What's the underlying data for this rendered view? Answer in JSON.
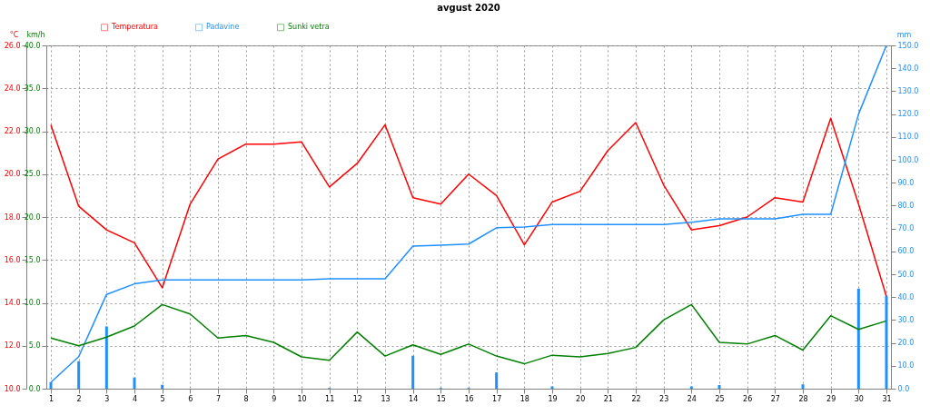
{
  "chart_data": {
    "type": "line",
    "title": "avgust 2020",
    "ylabel": "°C",
    "y3label": "km/h",
    "y2label": "mm",
    "x": [
      1,
      2,
      3,
      4,
      5,
      6,
      7,
      8,
      9,
      10,
      11,
      12,
      13,
      14,
      15,
      16,
      17,
      18,
      19,
      20,
      21,
      22,
      23,
      24,
      25,
      26,
      27,
      28,
      29,
      30,
      31
    ],
    "xlim": [
      1,
      31
    ],
    "xticks": [
      1,
      2,
      3,
      4,
      5,
      6,
      7,
      8,
      9,
      10,
      11,
      12,
      13,
      14,
      15,
      16,
      17,
      18,
      19,
      20,
      21,
      22,
      23,
      24,
      25,
      26,
      27,
      28,
      29,
      30,
      31
    ],
    "ylim": [
      10,
      26
    ],
    "yticks": [
      {
        "value": 10,
        "label": "10.0"
      },
      {
        "value": 12,
        "label": "12.0"
      },
      {
        "value": 14,
        "label": "14.0"
      },
      {
        "value": 16,
        "label": "16.0"
      },
      {
        "value": 18,
        "label": "18.0"
      },
      {
        "value": 20,
        "label": "20.0"
      },
      {
        "value": 22,
        "label": "22.0"
      },
      {
        "value": 24,
        "label": "24.0"
      },
      {
        "value": 26,
        "label": "26.0"
      }
    ],
    "y3lim": [
      0,
      40
    ],
    "y3ticks": [
      {
        "value": 0,
        "label": "0.0"
      },
      {
        "value": 5,
        "label": "5.0"
      },
      {
        "value": 10,
        "label": "10.0"
      },
      {
        "value": 15,
        "label": "15.0"
      },
      {
        "value": 20,
        "label": "20.0"
      },
      {
        "value": 25,
        "label": "25.0"
      },
      {
        "value": 30,
        "label": "30.0"
      },
      {
        "value": 35,
        "label": "35.0"
      },
      {
        "value": 40,
        "label": "40.0"
      }
    ],
    "y2lim": [
      0,
      150
    ],
    "y2ticks": [
      {
        "value": 0,
        "label": "0.0"
      },
      {
        "value": 10,
        "label": "10.0"
      },
      {
        "value": 20,
        "label": "20.0"
      },
      {
        "value": 30,
        "label": "30.0"
      },
      {
        "value": 40,
        "label": "40.0"
      },
      {
        "value": 50,
        "label": "50.0"
      },
      {
        "value": 60,
        "label": "60.0"
      },
      {
        "value": 70,
        "label": "70.0"
      },
      {
        "value": 80,
        "label": "80.0"
      },
      {
        "value": 90,
        "label": "90.0"
      },
      {
        "value": 100,
        "label": "100.0"
      },
      {
        "value": 110,
        "label": "110.0"
      },
      {
        "value": 120,
        "label": "120.0"
      },
      {
        "value": 130,
        "label": "130.0"
      },
      {
        "value": 140,
        "label": "140.0"
      },
      {
        "value": 150,
        "label": "150.0"
      }
    ],
    "series": [
      {
        "name": "Temperatura",
        "color": "#ff0000",
        "values": [
          22.3,
          18.5,
          17.4,
          16.8,
          14.7,
          18.6,
          20.7,
          21.4,
          21.4,
          21.5,
          19.4,
          20.5,
          22.3,
          18.9,
          18.6,
          20.0,
          19.0,
          16.7,
          18.7,
          19.2,
          21.1,
          22.4,
          19.5,
          17.4,
          17.6,
          18.0,
          18.9,
          18.7,
          22.6,
          18.6,
          14.3
        ]
      },
      {
        "name": "Padavine",
        "axis": "y2",
        "color": "#1e90ff",
        "values": [
          2.8,
          14.0,
          41.2,
          45.8,
          47.5,
          47.5,
          47.5,
          47.5,
          47.5,
          47.5,
          48.0,
          48.0,
          48.0,
          62.3,
          62.7,
          63.2,
          70.3,
          70.6,
          71.7,
          71.7,
          71.7,
          71.7,
          71.7,
          72.7,
          74.2,
          74.2,
          74.2,
          76.2,
          76.2,
          120.0,
          150.0
        ]
      },
      {
        "type": "bar",
        "axis": "y2",
        "color": "#1e90ff",
        "values": [
          2.8,
          12.0,
          27.2,
          4.9,
          1.7,
          null,
          null,
          null,
          null,
          null,
          0.3,
          null,
          null,
          14.4,
          0.3,
          0.3,
          7.1,
          null,
          1.0,
          null,
          null,
          null,
          null,
          1.0,
          1.6,
          null,
          null,
          1.9,
          null,
          43.7,
          40.5
        ]
      },
      {
        "name": "Sunki vetra",
        "axis": "y3",
        "color": "#008000",
        "values": [
          5.9,
          5.0,
          6.0,
          7.3,
          9.8,
          8.7,
          5.9,
          6.2,
          5.4,
          3.7,
          3.3,
          6.6,
          3.8,
          5.1,
          4.0,
          5.2,
          3.8,
          2.9,
          3.9,
          3.7,
          4.1,
          4.8,
          8.0,
          9.8,
          5.4,
          5.2,
          6.2,
          4.5,
          8.5,
          6.9,
          7.9
        ]
      }
    ],
    "grid": true,
    "legend": "top left",
    "marker": "none",
    "line_style": "solid"
  }
}
